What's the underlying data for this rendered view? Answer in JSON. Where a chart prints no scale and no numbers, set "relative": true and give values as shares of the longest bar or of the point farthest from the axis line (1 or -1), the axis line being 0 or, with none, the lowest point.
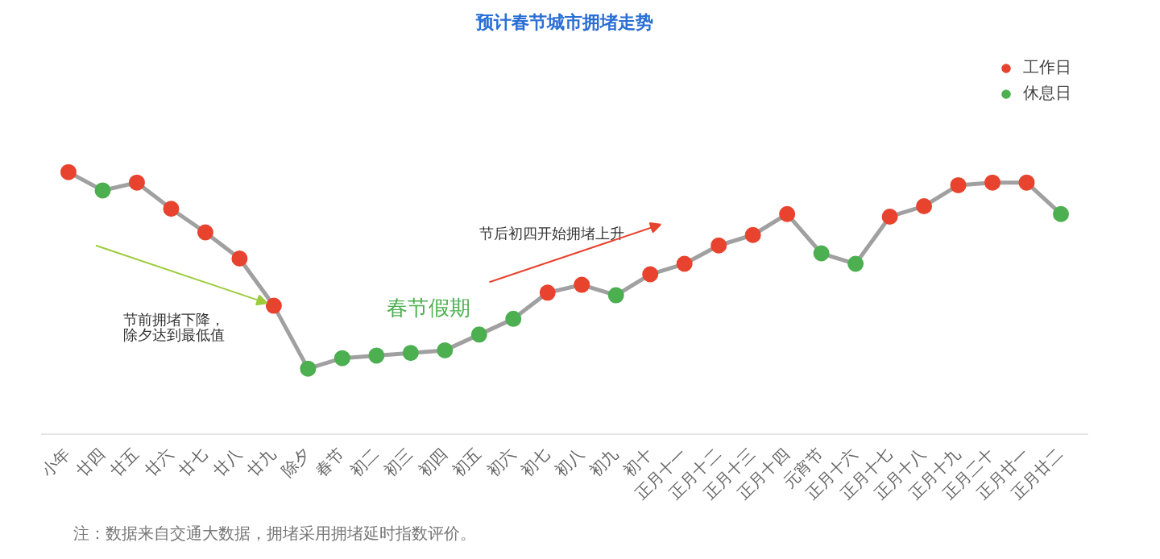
{
  "chart_data": {
    "type": "line",
    "title": "预计春节城市拥堵走势",
    "relative": true,
    "legend": "top right",
    "line_style": "solid",
    "categories": [
      "小年",
      "廿四",
      "廿五",
      "廿六",
      "廿七",
      "廿八",
      "廿九",
      "除夕",
      "春节",
      "初二",
      "初三",
      "初四",
      "初五",
      "初六",
      "初七",
      "初八",
      "初九",
      "初十",
      "正月十一",
      "正月十二",
      "正月十三",
      "正月十四",
      "元宵节",
      "正月十六",
      "正月十七",
      "正月十八",
      "正月十九",
      "正月二十",
      "正月廿一",
      "正月廿二"
    ],
    "series": [
      {
        "color": "#a0a0a0",
        "values": [
          1.0,
          0.93,
          0.96,
          0.86,
          0.77,
          0.67,
          0.49,
          0.25,
          0.29,
          0.3,
          0.31,
          0.32,
          0.38,
          0.44,
          0.54,
          0.57,
          0.53,
          0.61,
          0.65,
          0.72,
          0.76,
          0.84,
          0.69,
          0.65,
          0.83,
          0.87,
          0.95,
          0.96,
          0.96,
          0.84
        ]
      },
      {
        "type": "scatter",
        "marker": "circle",
        "name": "工作日",
        "color": "#e8432e",
        "values": [
          1.0,
          null,
          0.96,
          0.86,
          0.77,
          0.67,
          0.49,
          null,
          null,
          null,
          null,
          null,
          null,
          null,
          0.54,
          0.57,
          null,
          0.61,
          0.65,
          0.72,
          0.76,
          0.84,
          null,
          null,
          0.83,
          0.87,
          0.95,
          0.96,
          0.96,
          null
        ]
      },
      {
        "type": "scatter",
        "marker": "circle",
        "name": "休息日",
        "color": "#4caf50",
        "values": [
          null,
          0.93,
          null,
          null,
          null,
          null,
          null,
          0.25,
          0.29,
          0.3,
          0.31,
          0.32,
          0.38,
          0.44,
          null,
          null,
          0.53,
          null,
          null,
          null,
          null,
          null,
          0.69,
          0.65,
          null,
          null,
          null,
          null,
          null,
          0.84
        ]
      }
    ],
    "annotations": [
      "节前拥堵下降，",
      "除夕达到最低值",
      "节后初四开始拥堵上升",
      "春节假期",
      "注：数据来自交通大数据，拥堵采用拥堵延时指数评价。"
    ]
  }
}
